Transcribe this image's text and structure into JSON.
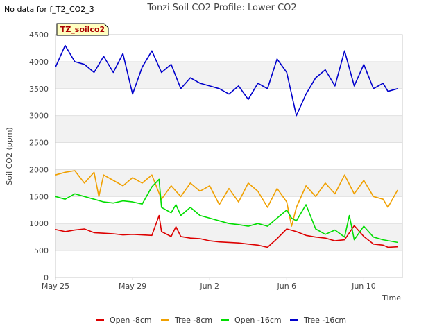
{
  "no_data_note": "No data for f_T2_CO2_3",
  "badge_label": "TZ_soilco2",
  "chart_data": {
    "type": "line",
    "title": "Tonzi Soil CO2 Profile: Lower CO2",
    "xlabel": "Time",
    "ylabel": "Soil CO2 (ppm)",
    "ylim": [
      0,
      4500
    ],
    "yticks": [
      0,
      500,
      1000,
      1500,
      2000,
      2500,
      3000,
      3500,
      4000,
      4500
    ],
    "xlim": [
      "2024-05-25",
      "2024-06-12"
    ],
    "xticks": [
      {
        "x": "2024-05-25",
        "label": "May 25"
      },
      {
        "x": "2024-05-29",
        "label": "May 29"
      },
      {
        "x": "2024-06-02",
        "label": "Jun 2"
      },
      {
        "x": "2024-06-06",
        "label": "Jun 6"
      },
      {
        "x": "2024-06-10",
        "label": "Jun 10"
      }
    ],
    "grid": "alternating horizontal bands",
    "legend_position": "bottom",
    "series": [
      {
        "name": "Open -8cm",
        "color": "#dd0000",
        "x": [
          "2024-05-25",
          "2024-05-25T12:00",
          "2024-05-26",
          "2024-05-26T12:00",
          "2024-05-27",
          "2024-05-27T12:00",
          "2024-05-28",
          "2024-05-28T12:00",
          "2024-05-29",
          "2024-05-29T12:00",
          "2024-05-30",
          "2024-05-30T09:00",
          "2024-05-30T12:00",
          "2024-05-31",
          "2024-05-31T06:00",
          "2024-05-31T12:00",
          "2024-06-01",
          "2024-06-01T12:00",
          "2024-06-02",
          "2024-06-02T12:00",
          "2024-06-03",
          "2024-06-03T12:00",
          "2024-06-04",
          "2024-06-04T12:00",
          "2024-06-05",
          "2024-06-05T12:00",
          "2024-06-06",
          "2024-06-06T12:00",
          "2024-06-07",
          "2024-06-07T12:00",
          "2024-06-08",
          "2024-06-08T12:00",
          "2024-06-09",
          "2024-06-09T12:00",
          "2024-06-10",
          "2024-06-10T12:00",
          "2024-06-11",
          "2024-06-11T06:00",
          "2024-06-11T18:00"
        ],
        "y": [
          890,
          850,
          880,
          900,
          830,
          820,
          810,
          790,
          800,
          790,
          780,
          1150,
          850,
          760,
          940,
          760,
          730,
          720,
          680,
          660,
          650,
          640,
          620,
          600,
          560,
          720,
          900,
          850,
          780,
          750,
          730,
          680,
          700,
          960,
          760,
          620,
          600,
          560,
          570
        ]
      },
      {
        "name": "Tree -8cm",
        "color": "#f0a000",
        "x": [
          "2024-05-25",
          "2024-05-25T12:00",
          "2024-05-26",
          "2024-05-26T12:00",
          "2024-05-27",
          "2024-05-27T06:00",
          "2024-05-27T12:00",
          "2024-05-28",
          "2024-05-28T12:00",
          "2024-05-29",
          "2024-05-29T12:00",
          "2024-05-30",
          "2024-05-30T12:00",
          "2024-05-31",
          "2024-05-31T12:00",
          "2024-06-01",
          "2024-06-01T12:00",
          "2024-06-02",
          "2024-06-02T12:00",
          "2024-06-03",
          "2024-06-03T12:00",
          "2024-06-04",
          "2024-06-04T12:00",
          "2024-06-05",
          "2024-06-05T12:00",
          "2024-06-06",
          "2024-06-06T06:00",
          "2024-06-06T12:00",
          "2024-06-07",
          "2024-06-07T12:00",
          "2024-06-08",
          "2024-06-08T12:00",
          "2024-06-09",
          "2024-06-09T12:00",
          "2024-06-10",
          "2024-06-10T12:00",
          "2024-06-11",
          "2024-06-11T06:00",
          "2024-06-11T18:00"
        ],
        "y": [
          1900,
          1950,
          1980,
          1750,
          1950,
          1500,
          1900,
          1800,
          1700,
          1850,
          1750,
          1900,
          1450,
          1700,
          1500,
          1750,
          1600,
          1700,
          1350,
          1650,
          1400,
          1750,
          1600,
          1300,
          1650,
          1400,
          950,
          1300,
          1700,
          1500,
          1750,
          1550,
          1900,
          1550,
          1800,
          1500,
          1450,
          1300,
          1620
        ]
      },
      {
        "name": "Open -16cm",
        "color": "#00dd00",
        "x": [
          "2024-05-25",
          "2024-05-25T12:00",
          "2024-05-26",
          "2024-05-26T12:00",
          "2024-05-27",
          "2024-05-27T12:00",
          "2024-05-28",
          "2024-05-28T12:00",
          "2024-05-29",
          "2024-05-29T12:00",
          "2024-05-30",
          "2024-05-30T09:00",
          "2024-05-30T12:00",
          "2024-05-31",
          "2024-05-31T06:00",
          "2024-05-31T12:00",
          "2024-06-01",
          "2024-06-01T12:00",
          "2024-06-02",
          "2024-06-02T12:00",
          "2024-06-03",
          "2024-06-03T12:00",
          "2024-06-04",
          "2024-06-04T12:00",
          "2024-06-05",
          "2024-06-05T12:00",
          "2024-06-06",
          "2024-06-06T06:00",
          "2024-06-06T12:00",
          "2024-06-07",
          "2024-06-07T12:00",
          "2024-06-08",
          "2024-06-08T12:00",
          "2024-06-09",
          "2024-06-09T06:00",
          "2024-06-09T12:00",
          "2024-06-10",
          "2024-06-10T12:00",
          "2024-06-11",
          "2024-06-11T18:00"
        ],
        "y": [
          1500,
          1450,
          1550,
          1500,
          1450,
          1400,
          1380,
          1420,
          1400,
          1360,
          1680,
          1820,
          1300,
          1200,
          1350,
          1150,
          1300,
          1150,
          1100,
          1050,
          1000,
          980,
          950,
          1000,
          950,
          1100,
          1250,
          1100,
          1050,
          1350,
          900,
          800,
          880,
          750,
          1150,
          700,
          950,
          750,
          700,
          650
        ]
      },
      {
        "name": "Tree -16cm",
        "color": "#0000cc",
        "x": [
          "2024-05-25",
          "2024-05-25T12:00",
          "2024-05-26",
          "2024-05-26T12:00",
          "2024-05-27",
          "2024-05-27T12:00",
          "2024-05-28",
          "2024-05-28T12:00",
          "2024-05-29",
          "2024-05-29T12:00",
          "2024-05-30",
          "2024-05-30T12:00",
          "2024-05-31",
          "2024-05-31T12:00",
          "2024-06-01",
          "2024-06-01T12:00",
          "2024-06-02",
          "2024-06-02T12:00",
          "2024-06-03",
          "2024-06-03T12:00",
          "2024-06-04",
          "2024-06-04T12:00",
          "2024-06-05",
          "2024-06-05T12:00",
          "2024-06-06",
          "2024-06-06T12:00",
          "2024-06-07",
          "2024-06-07T12:00",
          "2024-06-08",
          "2024-06-08T12:00",
          "2024-06-09",
          "2024-06-09T12:00",
          "2024-06-10",
          "2024-06-10T12:00",
          "2024-06-11",
          "2024-06-11T06:00",
          "2024-06-11T18:00"
        ],
        "y": [
          3900,
          4300,
          4000,
          3950,
          3800,
          4100,
          3800,
          4150,
          3400,
          3900,
          4200,
          3800,
          3950,
          3500,
          3700,
          3600,
          3550,
          3500,
          3400,
          3550,
          3300,
          3600,
          3500,
          4050,
          3800,
          3000,
          3400,
          3700,
          3850,
          3550,
          4200,
          3550,
          3950,
          3500,
          3600,
          3450,
          3500
        ]
      }
    ]
  }
}
